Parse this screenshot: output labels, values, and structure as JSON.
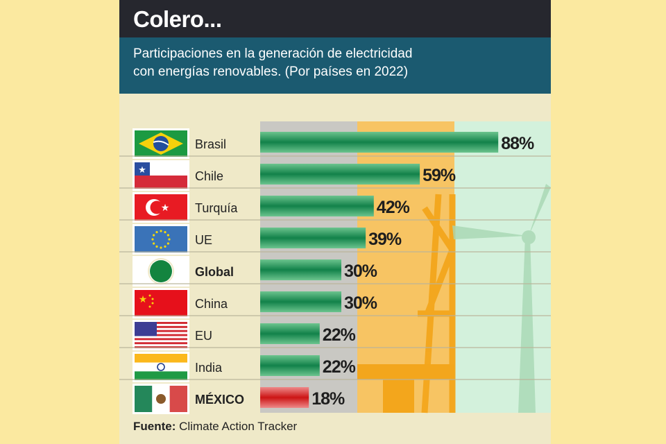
{
  "header": {
    "title": "Colero...",
    "subtitle_line1": "Participaciones en la generación de electricidad",
    "subtitle_line2": "con energías renovables. (Por países en 2022)"
  },
  "source": {
    "label": "Fuente:",
    "text": "Climate Action Tracker"
  },
  "colors": {
    "header_bg": "#26272e",
    "subtitle_bg": "#1b5a70",
    "bar_green": "#1a8a4a",
    "bar_red": "#d42a2a",
    "page_bg": "#fbe9a0"
  },
  "chart_data": {
    "type": "bar",
    "orientation": "horizontal",
    "title": "Colero...",
    "subtitle": "Participaciones en la generación de electricidad con energías renovables. (Por países en 2022)",
    "xlabel": "",
    "ylabel": "",
    "unit": "%",
    "xlim": [
      0,
      100
    ],
    "grid": false,
    "legend": "none",
    "categories": [
      "Brasil",
      "Chile",
      "Turquía",
      "UE",
      "Global",
      "China",
      "EU",
      "India",
      "MÉXICO"
    ],
    "values": [
      88,
      59,
      42,
      39,
      30,
      30,
      22,
      22,
      18
    ],
    "labels": [
      "88%",
      "59%",
      "42%",
      "39%",
      "30%",
      "30%",
      "22%",
      "22%",
      "18%"
    ],
    "flags": [
      "brazil-flag",
      "chile-flag",
      "turkey-flag",
      "eu-flag",
      "global-circle",
      "china-flag",
      "usa-flag",
      "india-flag",
      "mexico-flag"
    ],
    "highlight": [
      "Global",
      "MÉXICO"
    ],
    "bar_colors": [
      "green",
      "green",
      "green",
      "green",
      "green",
      "green",
      "green",
      "green",
      "red"
    ]
  }
}
